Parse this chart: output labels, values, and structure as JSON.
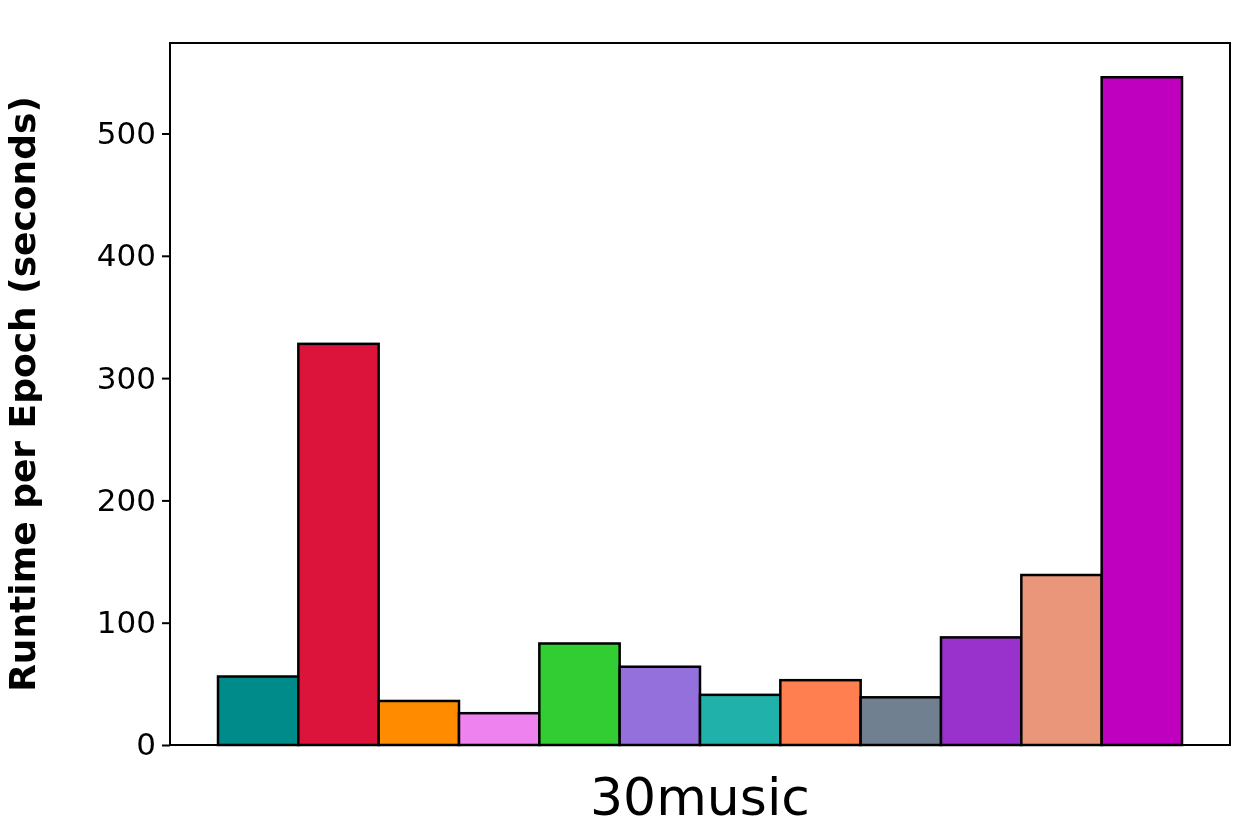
{
  "chart_data": {
    "type": "bar",
    "xlabel": "30music",
    "ylabel": "Runtime per Epoch (seconds)",
    "categories": [
      null,
      null,
      null,
      null,
      null,
      null,
      null,
      null,
      null,
      null,
      null,
      null
    ],
    "values": [
      56,
      328,
      36,
      26,
      83,
      64,
      41,
      53,
      39,
      88,
      139,
      546
    ],
    "colors": [
      "#008b8b",
      "#dc143c",
      "#ff8c00",
      "#ee82ee",
      "#32cd32",
      "#9370db",
      "#20b2aa",
      "#ff7f50",
      "#708090",
      "#9932cc",
      "#e9967a",
      "#bf00bf"
    ],
    "ylim": [
      0,
      574
    ],
    "yticks": [
      0,
      100,
      200,
      300,
      400,
      500
    ]
  }
}
